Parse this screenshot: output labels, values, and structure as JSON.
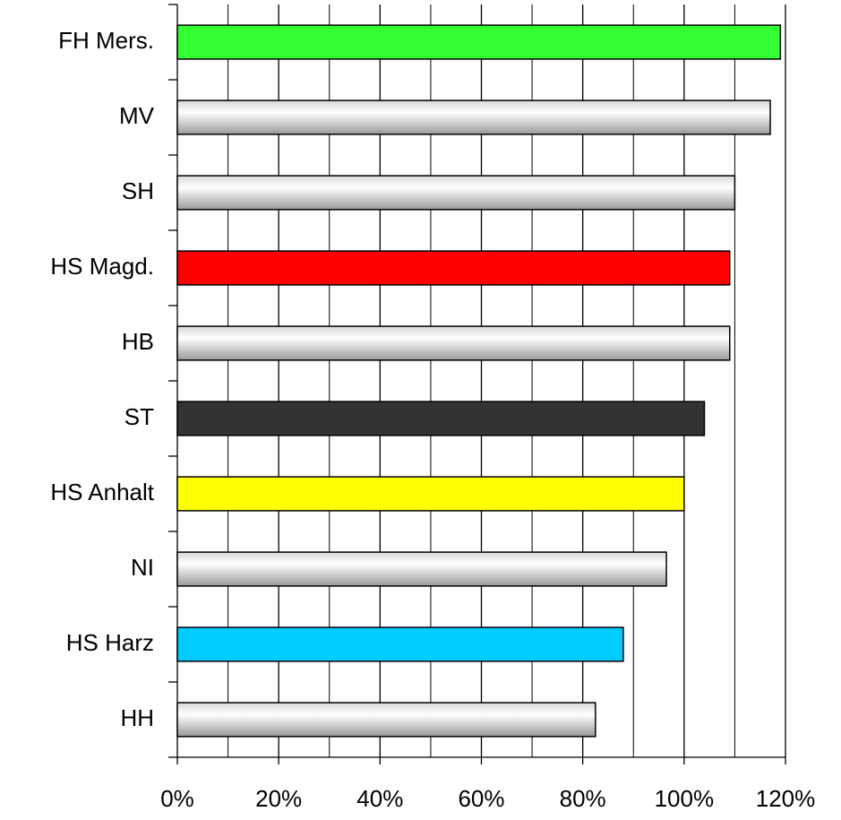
{
  "chart_data": {
    "type": "barh",
    "categories": [
      "FH Mers.",
      "MV",
      "SH",
      "HS Magd.",
      "HB",
      "ST",
      "HS Anhalt",
      "NI",
      "HS Harz",
      "HH"
    ],
    "values": [
      119,
      117,
      110,
      109,
      109,
      104,
      100,
      96.5,
      88,
      82.5
    ],
    "colors": [
      "#33ff33",
      "#b4b4b4",
      "#b4b4b4",
      "#ff0000",
      "#b4b4b4",
      "#333333",
      "#ffff00",
      "#b4b4b4",
      "#00ccff",
      "#b4b4b4"
    ],
    "shaded": [
      false,
      true,
      true,
      false,
      true,
      false,
      false,
      true,
      false,
      true
    ],
    "xlim": [
      0,
      120
    ],
    "xticks": [
      {
        "value": 0,
        "label": "0%"
      },
      {
        "value": 20,
        "label": "20%"
      },
      {
        "value": 40,
        "label": "40%"
      },
      {
        "value": 60,
        "label": "60%"
      },
      {
        "value": 80,
        "label": "80%"
      },
      {
        "value": 100,
        "label": "100%"
      },
      {
        "value": 120,
        "label": "120%"
      }
    ],
    "minor_xticks": [
      10,
      30,
      50,
      70,
      90,
      110
    ],
    "grid": true
  }
}
